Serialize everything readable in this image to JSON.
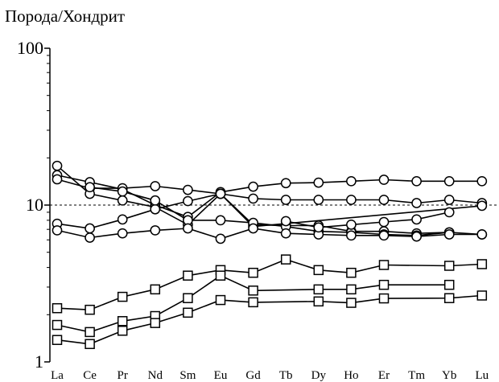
{
  "chart_data": {
    "type": "line",
    "title": "",
    "ylabel": "Порода/Хондрит",
    "xlabel": "",
    "yscale": "log",
    "ylim": [
      1,
      100
    ],
    "yticks": [
      {
        "value": 1,
        "label": "1"
      },
      {
        "value": 10,
        "label": "10"
      },
      {
        "value": 100,
        "label": "100"
      }
    ],
    "categories": [
      "La",
      "Ce",
      "Pr",
      "Nd",
      "Sm",
      "Eu",
      "Gd",
      "Tb",
      "Dy",
      "Ho",
      "Er",
      "Tm",
      "Yb",
      "Lu"
    ],
    "reference_line": {
      "value": 10,
      "style": "dashed"
    },
    "grid": false,
    "legend": "none",
    "series": [
      {
        "marker": "circle",
        "values": [
          15.5,
          14.0,
          12.6,
          10.0,
          8.4,
          12.1,
          13.1,
          13.8,
          13.9,
          14.2,
          14.5,
          14.2,
          14.2,
          14.2
        ]
      },
      {
        "marker": "circle",
        "values": [
          14.6,
          12.8,
          12.8,
          13.2,
          12.5,
          11.8,
          11.0,
          10.8,
          10.8,
          10.8,
          10.8,
          10.3,
          10.8,
          10.3
        ]
      },
      {
        "marker": "circle",
        "values": [
          17.8,
          11.8,
          10.7,
          9.7,
          7.5,
          11.8,
          7.3,
          null,
          null,
          null,
          null,
          null,
          null,
          9.9
        ]
      },
      {
        "marker": "circle",
        "values": [
          7.6,
          7.1,
          8.1,
          9.4,
          10.6,
          11.8,
          7.5,
          7.4,
          7.4,
          6.8,
          6.8,
          6.6,
          6.7,
          6.5
        ]
      },
      {
        "marker": "circle",
        "values": [
          null,
          13.0,
          12.2,
          10.7,
          8.0,
          8.0,
          7.7,
          7.3,
          6.8,
          6.7,
          6.5,
          6.4,
          6.7,
          null
        ]
      },
      {
        "marker": "circle",
        "values": [
          6.9,
          6.2,
          6.6,
          6.9,
          7.1,
          6.1,
          7.1,
          6.6,
          6.5,
          6.4,
          6.4,
          6.3,
          6.5,
          6.5
        ]
      },
      {
        "marker": "circle",
        "values": [
          null,
          null,
          null,
          null,
          null,
          null,
          null,
          7.9,
          7.2,
          7.5,
          7.8,
          8.1,
          9.0,
          null
        ]
      },
      {
        "marker": "square",
        "values": [
          2.2,
          2.15,
          2.6,
          2.9,
          3.55,
          3.85,
          3.7,
          4.5,
          3.85,
          3.7,
          4.15,
          null,
          4.1,
          4.2
        ]
      },
      {
        "marker": "square",
        "values": [
          1.72,
          1.55,
          1.82,
          1.96,
          2.55,
          3.55,
          2.85,
          null,
          2.9,
          2.9,
          3.1,
          null,
          3.1,
          null
        ]
      },
      {
        "marker": "square",
        "values": [
          1.38,
          1.3,
          1.58,
          1.77,
          2.06,
          2.48,
          2.4,
          null,
          2.43,
          2.38,
          2.54,
          null,
          2.55,
          2.65
        ]
      }
    ]
  }
}
